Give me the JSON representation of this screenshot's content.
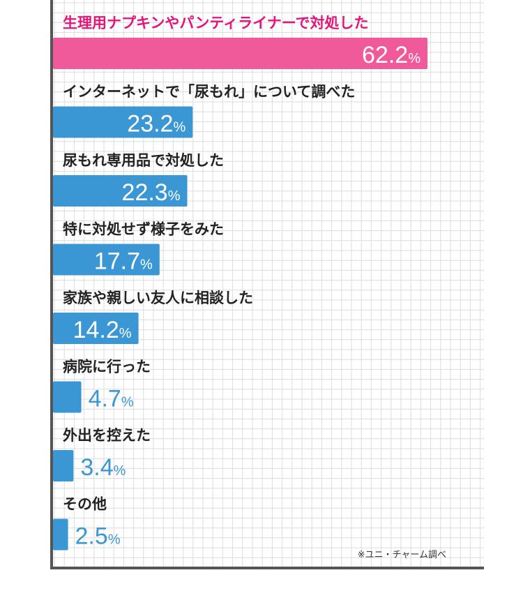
{
  "chart_data": {
    "type": "bar",
    "orientation": "horizontal",
    "categories": [
      "生理用ナプキンやパンティライナーで対処した",
      "インターネットで「尿もれ」について調べた",
      "尿もれ専用品で対処した",
      "特に対処せず様子をみた",
      "家族や親しい友人に相談した",
      "病院に行った",
      "外出を控えた",
      "その他"
    ],
    "values": [
      62.2,
      23.2,
      22.3,
      17.7,
      14.2,
      4.7,
      3.4,
      2.5
    ],
    "unit": "%",
    "highlight_index": 0,
    "grid": true,
    "source_note": "※ユニ・チャーム調べ"
  },
  "colors": {
    "highlight_bar": "#f0599a",
    "highlight_label": "#e4147a",
    "bar": "#3b97d3",
    "label": "#222222",
    "grid": "#dcdcdc",
    "axis": "#555555"
  }
}
